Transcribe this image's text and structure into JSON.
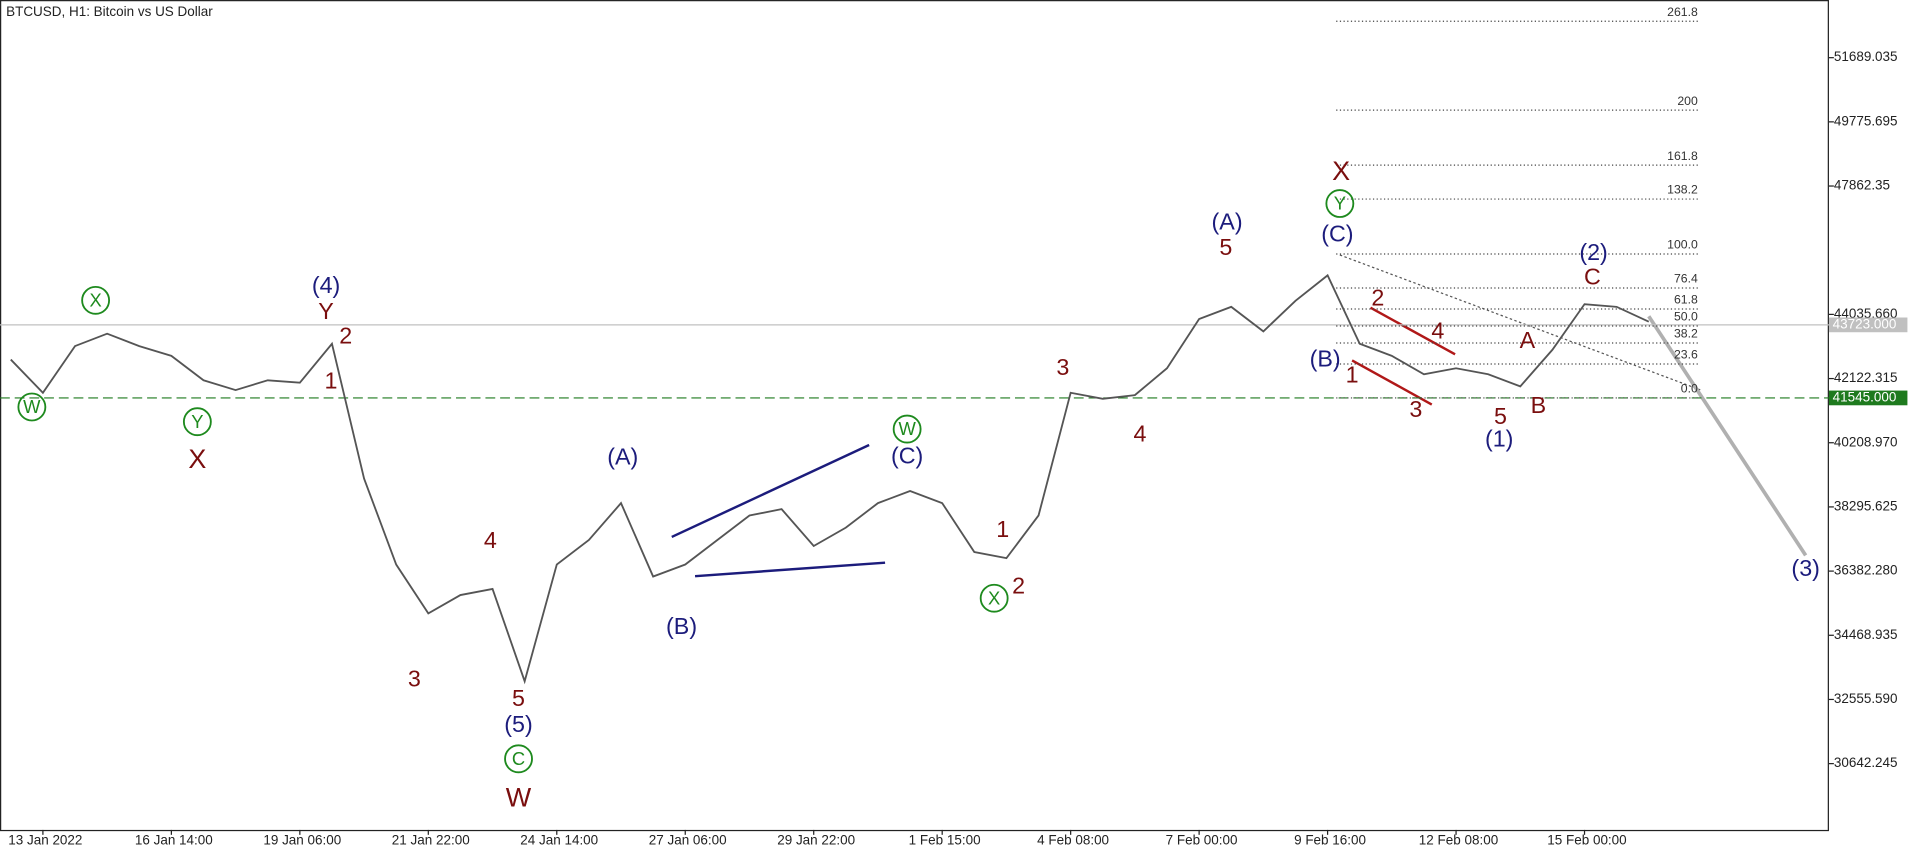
{
  "chart_data": {
    "type": "line",
    "title": "BTCUSD, H1:  Bitcoin vs US Dollar",
    "categories": [
      null,
      "13 Jan 2022",
      null,
      null,
      null,
      "16 Jan 14:00",
      null,
      null,
      null,
      "19 Jan 06:00",
      null,
      null,
      null,
      "21 Jan 22:00",
      null,
      null,
      null,
      "24 Jan 14:00",
      null,
      null,
      null,
      "27 Jan 06:00",
      null,
      null,
      null,
      "29 Jan 22:00",
      null,
      null,
      null,
      "1 Feb 15:00",
      null,
      null,
      null,
      "4 Feb 08:00",
      null,
      null,
      null,
      "7 Feb 00:00",
      null,
      null,
      null,
      "9 Feb 16:00",
      null,
      null,
      null,
      "12 Feb 08:00",
      null,
      null,
      null,
      "15 Feb 00:00",
      null,
      null
    ],
    "series": [
      {
        "name": "BTCUSD",
        "color": "#555555",
        "values": [
          42690,
          41700,
          43090,
          43460,
          43090,
          42800,
          42070,
          41780,
          42070,
          42000,
          43160,
          39140,
          36580,
          35120,
          35670,
          35850,
          33100,
          36580,
          37310,
          38410,
          36220,
          36580,
          37310,
          38040,
          38230,
          37130,
          37680,
          38410,
          38770,
          38410,
          36950,
          36770,
          38040,
          41700,
          41520,
          41630,
          42430,
          43900,
          44260,
          43530,
          44440,
          45200,
          43160,
          42800,
          42250,
          42430,
          42250,
          41890,
          42980,
          44340,
          44260,
          43820
        ]
      }
    ],
    "ylim": [
      28666,
      53408
    ],
    "yticks": [
      51689.035,
      49775.695,
      47862.35,
      {
        "value": 44035.66,
        "label": "44035.660"
      },
      42122.315,
      {
        "value": 40208.97,
        "label": "40208.970"
      },
      38295.625,
      {
        "value": 36382.28,
        "label": "36382.280"
      },
      34468.935,
      {
        "value": 32555.59,
        "label": "32555.590"
      },
      30642.245
    ],
    "price_lines": [
      {
        "value": 43723,
        "label": "43723.000",
        "color": "#c0c0c0"
      },
      {
        "value": 41545,
        "label": "41545.000",
        "color": "#1e7a1e"
      }
    ],
    "fibonacci": {
      "from": 41545,
      "to": 45835,
      "levels": [
        {
          "value": 261.8,
          "label": "261.8"
        },
        {
          "value": 200,
          "label": "200"
        },
        {
          "value": 161.8,
          "label": "161.8"
        },
        {
          "value": 138.2,
          "label": "138.2"
        },
        {
          "value": 100,
          "label": "100.0"
        },
        {
          "value": 76.4,
          "label": "76.4"
        },
        {
          "value": 61.8,
          "label": "61.8"
        },
        {
          "value": 50,
          "label": "50.0"
        },
        {
          "value": 38.2,
          "label": "38.2"
        },
        {
          "value": 23.6,
          "label": "23.6"
        },
        {
          "value": 0,
          "label": "0.0"
        }
      ]
    },
    "annotations": [
      {
        "text": "X",
        "color": "#1e8a1e",
        "circle": true
      },
      {
        "text": "W",
        "color": "#1e8a1e",
        "circle": true
      },
      {
        "text": "Y",
        "color": "#1e8a1e",
        "circle": true
      },
      {
        "text": "X",
        "color": "#7a0e0e"
      },
      {
        "text": "(4)",
        "color": "#1c1c7c"
      },
      {
        "text": "Y",
        "color": "#7a0e0e"
      },
      {
        "text": "2",
        "color": "#7a0e0e"
      },
      {
        "text": "1",
        "color": "#7a0e0e"
      },
      {
        "text": "4",
        "color": "#7a0e0e"
      },
      {
        "text": "3",
        "color": "#7a0e0e"
      },
      {
        "text": "5",
        "color": "#7a0e0e"
      },
      {
        "text": "(5)",
        "color": "#1c1c7c"
      },
      {
        "text": "C",
        "color": "#1e8a1e",
        "circle": true
      },
      {
        "text": "W",
        "color": "#7a0e0e"
      },
      {
        "text": "(A)",
        "color": "#1c1c7c"
      },
      {
        "text": "(B)",
        "color": "#1c1c7c"
      },
      {
        "text": "W",
        "color": "#1e8a1e",
        "circle": true
      },
      {
        "text": "(C)",
        "color": "#1c1c7c"
      },
      {
        "text": "1",
        "color": "#7a0e0e"
      },
      {
        "text": "2",
        "color": "#7a0e0e"
      },
      {
        "text": "X",
        "color": "#1e8a1e",
        "circle": true
      },
      {
        "text": "3",
        "color": "#7a0e0e"
      },
      {
        "text": "4",
        "color": "#7a0e0e"
      },
      {
        "text": "(A)",
        "color": "#1c1c7c"
      },
      {
        "text": "5",
        "color": "#7a0e0e"
      },
      {
        "text": "X",
        "color": "#7a0e0e"
      },
      {
        "text": "Y",
        "color": "#1e8a1e",
        "circle": true
      },
      {
        "text": "(C)",
        "color": "#1c1c7c"
      },
      {
        "text": "2",
        "color": "#7a0e0e"
      },
      {
        "text": "4",
        "color": "#7a0e0e"
      },
      {
        "text": "(B)",
        "color": "#1c1c7c"
      },
      {
        "text": "1",
        "color": "#7a0e0e"
      },
      {
        "text": "3",
        "color": "#7a0e0e"
      },
      {
        "text": "5",
        "color": "#7a0e0e"
      },
      {
        "text": "(1)",
        "color": "#1c1c7c"
      },
      {
        "text": "A",
        "color": "#7a0e0e"
      },
      {
        "text": "B",
        "color": "#7a0e0e"
      },
      {
        "text": "C",
        "color": "#7a0e0e"
      },
      {
        "text": "(2)",
        "color": "#1c1c7c"
      },
      {
        "text": "(3)",
        "color": "#1c1c7c"
      }
    ]
  }
}
